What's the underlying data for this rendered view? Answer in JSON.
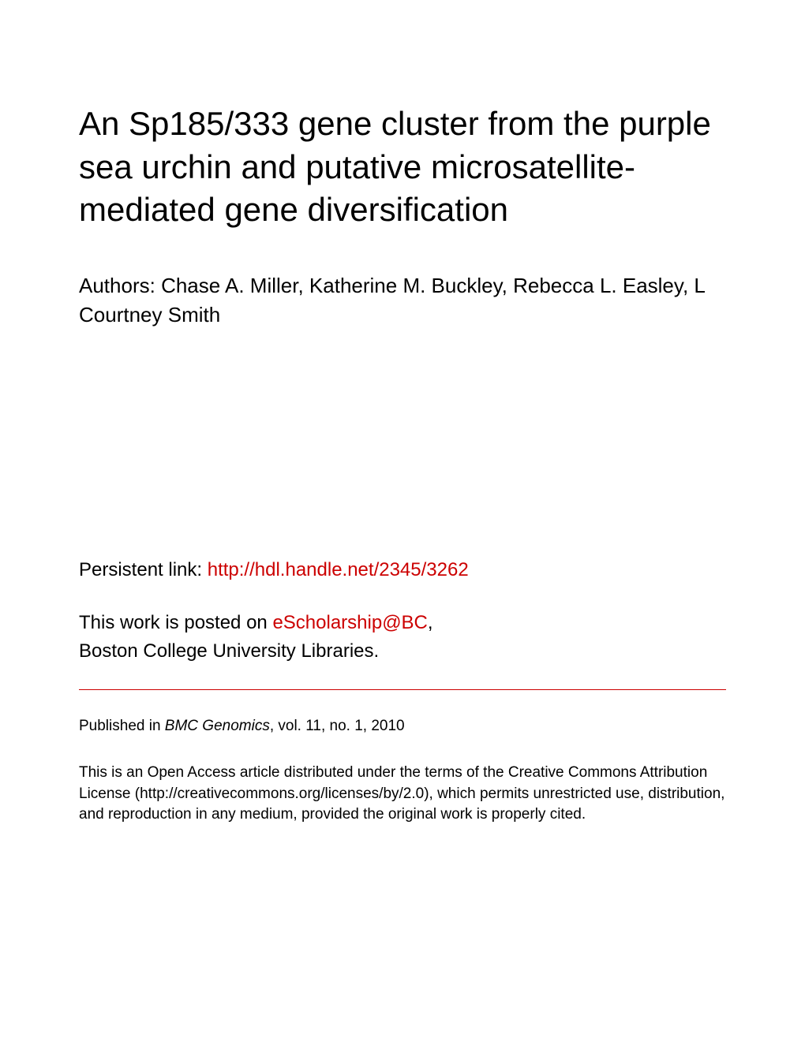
{
  "title": "An Sp185/333 gene cluster from the purple sea urchin and putative microsatellite-mediated gene diversification",
  "authors_label": "Authors: ",
  "authors": "Chase A. Miller, Katherine M. Buckley, Rebecca L. Easley, L Courtney Smith",
  "persistent_link_label": "Persistent link: ",
  "persistent_link_url": "http://hdl.handle.net/2345/3262",
  "posted_on_prefix": "This work is posted on ",
  "escholarship_label": "eScholarship@BC",
  "posted_on_suffix": ",",
  "library_line": "Boston College University Libraries.",
  "published_prefix": "Published in ",
  "journal_name": "BMC Genomics",
  "published_suffix": ", vol. 11, no. 1, 2010",
  "license_text": "This is an Open Access article distributed under the terms of the Creative Commons Attribution License (http://creativecommons.org/licenses/by/2.0), which permits unrestricted use, distribution, and reproduction in any medium, provided the original work is properly cited.",
  "colors": {
    "link": "#cc0000",
    "divider": "#cc0000",
    "text": "#000000",
    "background": "#ffffff"
  },
  "typography": {
    "title_fontsize": 42,
    "authors_fontsize": 26,
    "link_fontsize": 24,
    "small_fontsize": 19
  }
}
